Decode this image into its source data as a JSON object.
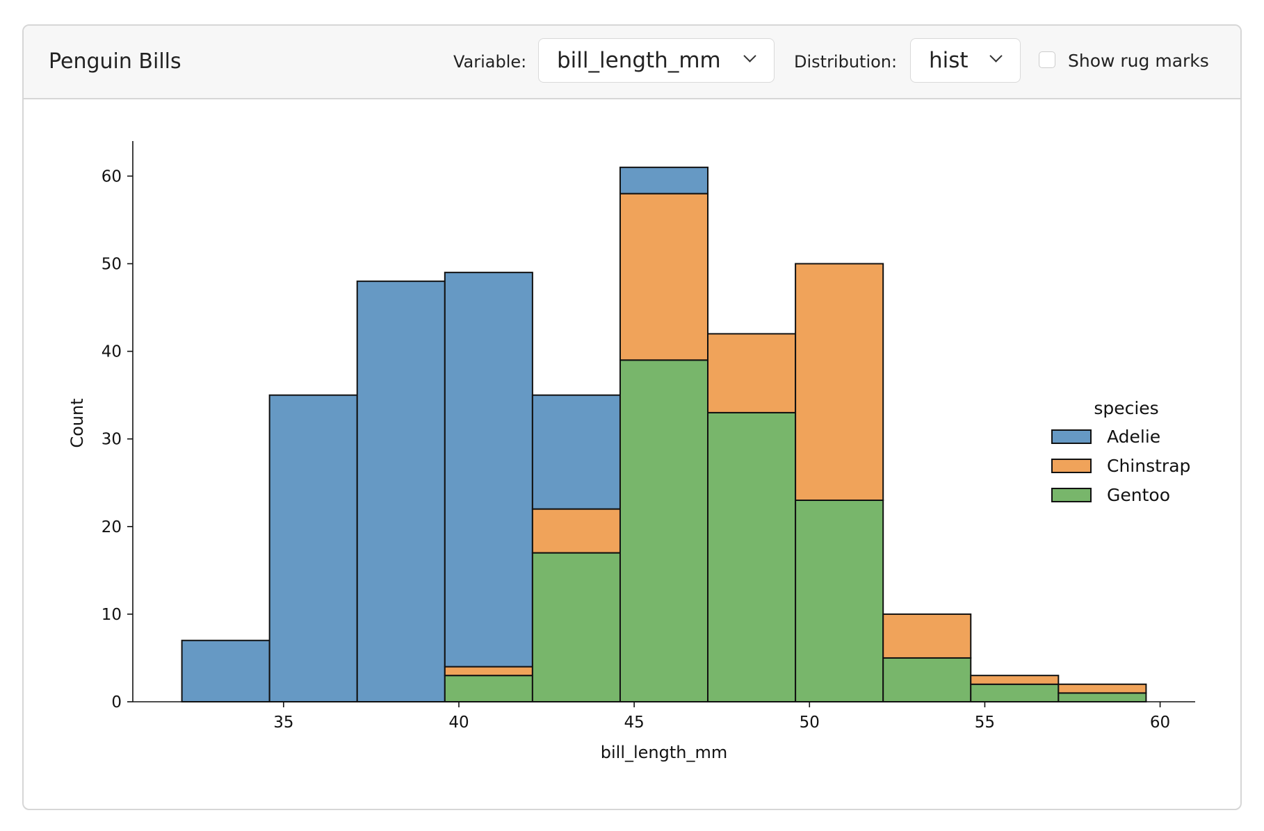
{
  "header": {
    "title": "Penguin Bills",
    "variable_label": "Variable:",
    "variable_value": "bill_length_mm",
    "distribution_label": "Distribution:",
    "distribution_value": "hist",
    "rug_label": "Show rug marks",
    "rug_checked": false
  },
  "chart_data": {
    "type": "bar",
    "stacked": true,
    "xlabel": "bill_length_mm",
    "ylabel": "Count",
    "xlim": [
      30.7,
      61.0
    ],
    "ylim": [
      0,
      64
    ],
    "xticks": [
      35,
      40,
      45,
      50,
      55,
      60
    ],
    "yticks": [
      0,
      10,
      20,
      30,
      40,
      50,
      60
    ],
    "bin_edges": [
      32.1,
      34.6,
      37.1,
      39.6,
      42.1,
      44.6,
      47.1,
      49.6,
      52.1,
      54.6,
      57.1,
      59.6
    ],
    "legend_title": "species",
    "legend_position": "center-right",
    "series": [
      {
        "name": "Adelie",
        "color": "#6699c4",
        "values": [
          7,
          35,
          48,
          45,
          13,
          3,
          0,
          0,
          0,
          0,
          0
        ]
      },
      {
        "name": "Chinstrap",
        "color": "#f0a35a",
        "values": [
          0,
          0,
          0,
          1,
          5,
          19,
          9,
          27,
          5,
          1,
          1
        ]
      },
      {
        "name": "Gentoo",
        "color": "#78b66b",
        "values": [
          0,
          0,
          0,
          3,
          17,
          39,
          33,
          23,
          5,
          2,
          1
        ]
      }
    ],
    "stack_order_bottom_to_top": [
      "Gentoo",
      "Chinstrap",
      "Adelie"
    ]
  }
}
